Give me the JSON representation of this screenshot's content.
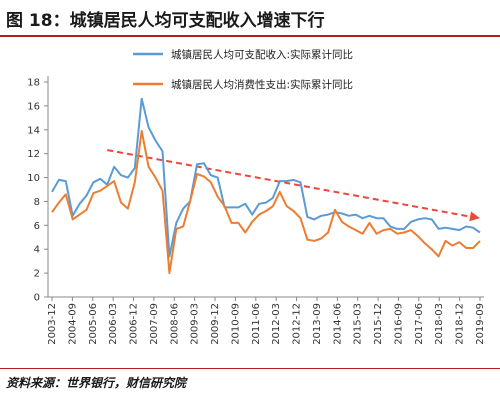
{
  "header": {
    "title": "图 18：城镇居民人均可支配收入增速下行"
  },
  "source": "资料来源：世界银行，财信研究院",
  "colors": {
    "accent": "#b41e1e",
    "income": "#5b9bd5",
    "consumption": "#ed7d31",
    "trend": "#f0463c"
  },
  "chart_data": {
    "type": "line",
    "title": "",
    "xlabel": "",
    "ylabel": "",
    "ylim": [
      0,
      18
    ],
    "yticks": [
      0,
      2,
      4,
      6,
      8,
      10,
      12,
      14,
      16,
      18
    ],
    "xticks": [
      "2003-12",
      "2004-09",
      "2005-06",
      "2006-03",
      "2006-12",
      "2007-09",
      "2008-06",
      "2009-03",
      "2009-12",
      "2010-09",
      "2011-06",
      "2012-03",
      "2012-12",
      "2013-09",
      "2014-06",
      "2015-03",
      "2015-12",
      "2016-09",
      "2017-06",
      "2018-03",
      "2018-12",
      "2019-09"
    ],
    "legend_position": "top",
    "grid": false,
    "series": [
      {
        "name": "城镇居民人均可支配收入:实际累计同比",
        "color": "#5b9bd5",
        "values": [
          8.8,
          9.8,
          9.7,
          6.8,
          7.8,
          8.5,
          9.6,
          9.9,
          9.4,
          10.9,
          10.2,
          10.0,
          10.8,
          16.6,
          14.2,
          13.1,
          12.2,
          3.4,
          6.2,
          7.4,
          8.0,
          11.1,
          11.2,
          10.2,
          10.0,
          7.5,
          7.5,
          7.5,
          7.8,
          6.9,
          7.8,
          7.9,
          8.3,
          9.7,
          9.7,
          9.8,
          9.6,
          6.7,
          6.5,
          6.8,
          6.9,
          7.1,
          7.0,
          6.8,
          6.9,
          6.6,
          6.8,
          6.6,
          6.6,
          5.9,
          5.7,
          5.7,
          6.3,
          6.5,
          6.6,
          6.5,
          5.7,
          5.8,
          5.7,
          5.6,
          5.9,
          5.8,
          5.4
        ]
      },
      {
        "name": "城镇居民人均消费性支出:实际累计同比",
        "color": "#ed7d31",
        "values": [
          7.1,
          7.9,
          8.6,
          6.5,
          6.9,
          7.3,
          8.7,
          8.9,
          9.3,
          9.7,
          7.9,
          7.4,
          9.6,
          13.9,
          10.9,
          10.0,
          8.9,
          2.0,
          5.7,
          5.9,
          8.0,
          10.3,
          10.1,
          9.6,
          8.4,
          7.6,
          6.2,
          6.2,
          5.4,
          6.3,
          6.9,
          7.2,
          7.6,
          8.8,
          7.6,
          7.2,
          6.6,
          4.8,
          4.7,
          4.9,
          5.4,
          7.3,
          6.3,
          5.9,
          5.6,
          5.3,
          6.2,
          5.3,
          5.6,
          5.7,
          5.3,
          5.4,
          5.6,
          5.1,
          4.5,
          4.0,
          3.4,
          4.7,
          4.3,
          4.6,
          4.1,
          4.1,
          4.7
        ]
      }
    ],
    "trend": {
      "from": [
        8,
        12.3
      ],
      "to": [
        62,
        6.6
      ]
    }
  }
}
